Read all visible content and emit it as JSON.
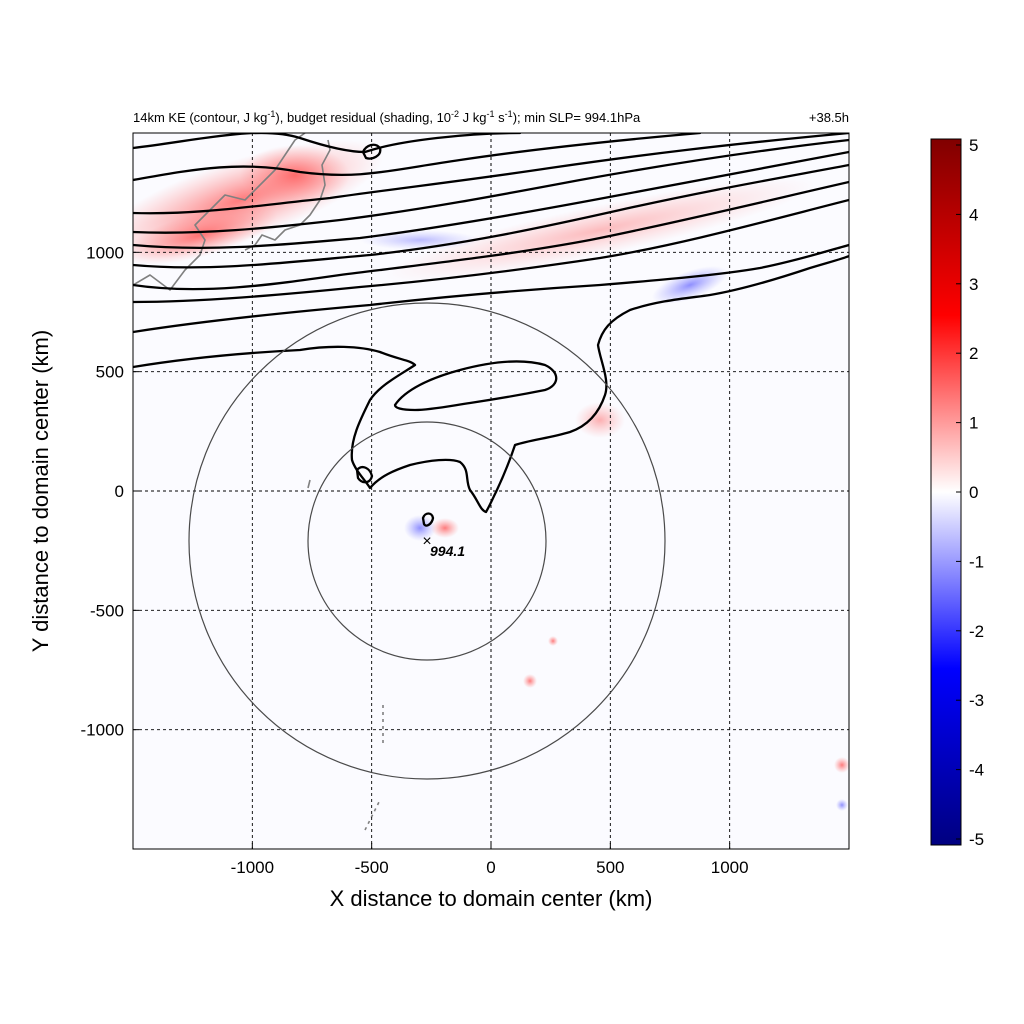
{
  "chart_data": {
    "type": "heatmap",
    "title_left": "14km KE (contour, J kg-1), budget residual (shading, 10-2 J kg-1 s-1); min SLP= 994.1hPa",
    "title_parts": {
      "a": "14km KE (contour, J kg",
      "a_sup": "-1",
      "b": "), budget residual (shading, 10",
      "b_sup": "-2",
      "c": " J kg",
      "c_sup": "-1",
      "d": " s",
      "d_sup": "-1",
      "e": "); min SLP= 994.1hPa"
    },
    "title_right": "+38.5h",
    "xlabel": "X distance to domain center (km)",
    "ylabel": "Y distance to domain center (km)",
    "xlim": [
      -1500,
      1500
    ],
    "ylim": [
      -1500,
      1500
    ],
    "xticks": [
      -1000,
      -500,
      0,
      500,
      1000
    ],
    "yticks": [
      -1000,
      -500,
      0,
      500,
      1000
    ],
    "grid": true,
    "colorbar": {
      "min": -5,
      "max": 5,
      "ticks": [
        5,
        4,
        3,
        2,
        1,
        0,
        -1,
        -2,
        -3,
        -4,
        -5
      ],
      "colormap": "blue-white-red",
      "colors": [
        "#000080",
        "#0000ff",
        "#ffffff",
        "#ff0000",
        "#800000"
      ],
      "placement": "right"
    },
    "storm_center": {
      "x": -270,
      "y": -210,
      "label": "994.1",
      "marker": "×"
    },
    "range_rings_km": [
      500,
      1000
    ]
  }
}
